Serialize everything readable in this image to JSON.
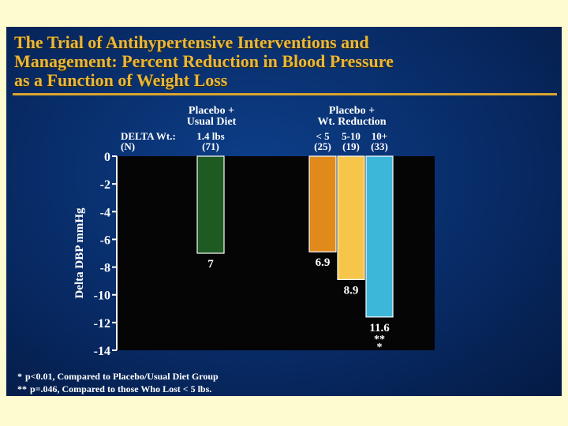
{
  "title_lines": [
    "The Trial of Antihypertensive Interventions and",
    "Management:  Percent Reduction in Blood Pressure",
    "as a Function of Weight Loss"
  ],
  "footnotes": [
    {
      "marker": "*",
      "text": "p<0.01, Compared to Placebo/Usual Diet Group"
    },
    {
      "marker": "**",
      "text": "p=.046, Compared to those Who Lost < 5 lbs."
    }
  ],
  "chart_data": {
    "type": "bar",
    "title": "The Trial of Antihypertensive Interventions and Management: Percent Reduction in Blood Pressure as a Function of Weight Loss",
    "ylabel": "Delta DBP mmHg",
    "ylim": [
      -14,
      0
    ],
    "yticks": [
      "0",
      "-2",
      "-4",
      "-6",
      "-8",
      "-10",
      "-12",
      "-14"
    ],
    "row_labels": {
      "delta": "DELTA Wt.:",
      "n": "(N)"
    },
    "groups": [
      {
        "label_lines": [
          "Placebo +",
          "Usual Diet"
        ],
        "bars": [
          "placebo"
        ]
      },
      {
        "label_lines": [
          "Placebo +",
          "Wt. Reduction"
        ],
        "bars": [
          "lt5",
          "5to10",
          "10plus"
        ]
      }
    ],
    "bars": [
      {
        "id": "placebo",
        "delta": "1.4 lbs",
        "n": "(71)",
        "value": -7,
        "label": "7",
        "sig": "",
        "color": "#1d5b22"
      },
      {
        "id": "lt5",
        "delta": "< 5",
        "n": "(25)",
        "value": -6.9,
        "label": "6.9",
        "sig": "",
        "color": "#e08a1c"
      },
      {
        "id": "5to10",
        "delta": "5-10",
        "n": "(19)",
        "value": -8.9,
        "label": "8.9",
        "sig": "",
        "color": "#f5c64a"
      },
      {
        "id": "10plus",
        "delta": "10+",
        "n": "(33)",
        "value": -11.6,
        "label": "11.6",
        "sig": "**\n*",
        "color": "#3db7d9"
      }
    ]
  }
}
